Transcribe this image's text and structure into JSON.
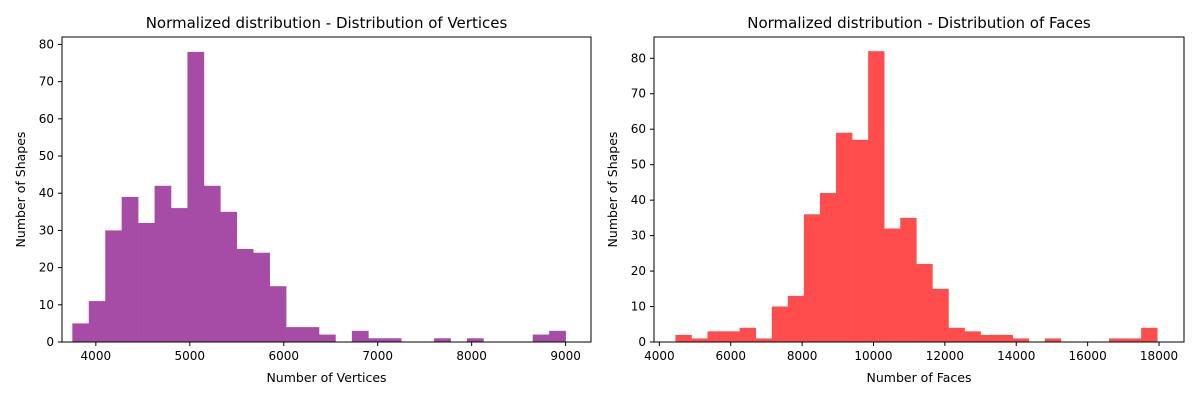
{
  "chart_data": [
    {
      "type": "bar",
      "title": "Normalized distribution - Distribution of Vertices",
      "xlabel": "Number of Vertices",
      "ylabel": "Number of Shapes",
      "color": "#a64ca6",
      "xlim": [
        3640,
        9270
      ],
      "ylim": [
        0,
        82
      ],
      "xticks": [
        4000,
        5000,
        6000,
        7000,
        8000,
        9000
      ],
      "yticks": [
        0,
        10,
        20,
        30,
        40,
        50,
        60,
        70,
        80
      ],
      "grid": false,
      "bins": {
        "start": 3750,
        "width": 175,
        "counts": [
          5,
          11,
          30,
          39,
          32,
          42,
          36,
          78,
          42,
          35,
          25,
          24,
          15,
          4,
          4,
          2,
          0,
          3,
          1,
          1,
          0,
          0,
          1,
          0,
          1,
          0,
          0,
          0,
          2,
          3
        ]
      }
    },
    {
      "type": "bar",
      "title": "Normalized distribution - Distribution of Faces",
      "xlabel": "Number of Faces",
      "ylabel": "Number of Shapes",
      "color": "#ff4c4c",
      "xlim": [
        3850,
        18700
      ],
      "ylim": [
        0,
        86
      ],
      "xticks": [
        4000,
        6000,
        8000,
        10000,
        12000,
        14000,
        16000,
        18000
      ],
      "yticks": [
        0,
        10,
        20,
        30,
        40,
        50,
        60,
        70,
        80
      ],
      "grid": false,
      "bins": {
        "start": 4450,
        "width": 450,
        "counts": [
          2,
          1,
          3,
          3,
          4,
          1,
          10,
          13,
          36,
          42,
          59,
          57,
          82,
          32,
          35,
          22,
          15,
          4,
          3,
          2,
          2,
          1,
          0,
          1,
          0,
          0,
          0,
          1,
          1,
          4
        ]
      }
    }
  ]
}
